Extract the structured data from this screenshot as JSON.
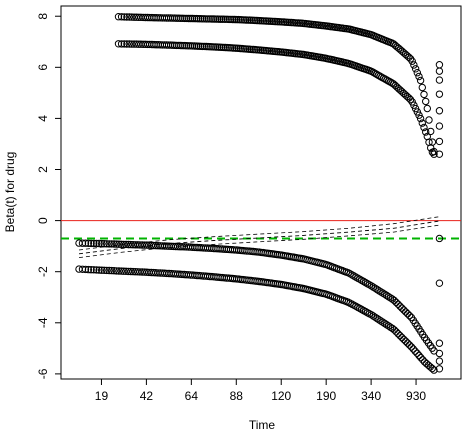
{
  "chart_data": {
    "type": "scatter",
    "title": "",
    "xlabel": "Time",
    "ylabel": "Beta(t) for drug",
    "x_ticks": [
      "19",
      "42",
      "64",
      "88",
      "120",
      "190",
      "340",
      "930"
    ],
    "y_ticks": [
      "-6",
      "-4",
      "-2",
      "0",
      "2",
      "4",
      "6",
      "8"
    ],
    "ylim": [
      -6.2,
      8.4
    ],
    "x_range_rank": [
      -0.4,
      8.5
    ],
    "x_tick_positions": [
      0.5,
      1.5,
      2.5,
      3.5,
      4.5,
      5.5,
      6.5,
      7.5
    ],
    "grid": false,
    "legend": "none",
    "series": [
      {
        "kind": "points",
        "values": [
          7.98,
          7.95,
          7.93,
          7.91,
          7.89,
          7.87,
          7.83,
          7.78,
          7.72,
          7.62,
          7.5,
          7.28,
          6.92,
          6.3,
          5.5,
          4.4,
          3.2,
          2.7
        ],
        "x": [
          0.88,
          1.5,
          2.0,
          2.5,
          3.0,
          3.5,
          4.0,
          4.5,
          5.0,
          5.5,
          6.0,
          6.5,
          7.0,
          7.4,
          7.6,
          7.75,
          7.85,
          7.9
        ]
      },
      {
        "kind": "points",
        "values": [
          6.92,
          6.9,
          6.87,
          6.84,
          6.8,
          6.75,
          6.68,
          6.6,
          6.5,
          6.35,
          6.15,
          5.85,
          5.35,
          4.7,
          4.0,
          3.3,
          2.7,
          2.6
        ],
        "x": [
          0.88,
          1.5,
          2.0,
          2.5,
          3.0,
          3.5,
          4.0,
          4.5,
          5.0,
          5.5,
          6.0,
          6.5,
          7.0,
          7.4,
          7.6,
          7.75,
          7.85,
          7.9
        ]
      },
      {
        "kind": "points",
        "values": [
          -0.88,
          -0.9,
          -0.93,
          -0.96,
          -1.0,
          -1.04,
          -1.09,
          -1.15,
          -1.23,
          -1.35,
          -1.5,
          -1.72,
          -2.05,
          -2.55,
          -3.1,
          -3.8,
          -4.6,
          -5.1
        ],
        "x": [
          0.0,
          0.5,
          1.0,
          1.5,
          2.0,
          2.5,
          3.0,
          3.5,
          4.0,
          4.5,
          5.0,
          5.5,
          6.0,
          6.5,
          7.0,
          7.4,
          7.7,
          7.9
        ]
      },
      {
        "kind": "points",
        "values": [
          -1.9,
          -1.94,
          -1.98,
          -2.02,
          -2.07,
          -2.13,
          -2.2,
          -2.28,
          -2.38,
          -2.5,
          -2.66,
          -2.88,
          -3.2,
          -3.68,
          -4.25,
          -4.95,
          -5.55,
          -5.85
        ],
        "x": [
          0.0,
          0.5,
          1.0,
          1.5,
          2.0,
          2.5,
          3.0,
          3.5,
          4.0,
          4.5,
          5.0,
          5.5,
          6.0,
          6.5,
          7.0,
          7.4,
          7.7,
          7.9
        ]
      },
      {
        "kind": "points",
        "values": [
          6.1,
          5.85,
          5.5,
          4.95,
          4.3,
          3.7,
          3.1,
          2.6,
          -0.7,
          -2.45,
          -4.8,
          -5.2,
          -5.5,
          -5.8
        ],
        "x": [
          8.02,
          8.02,
          8.02,
          8.02,
          8.02,
          8.02,
          8.02,
          8.02,
          8.02,
          8.02,
          8.02,
          8.02,
          8.02,
          8.02
        ]
      }
    ],
    "fit": {
      "x": [
        0.0,
        1.0,
        2.0,
        3.0,
        4.0,
        5.0,
        6.0,
        7.0,
        8.0
      ],
      "center": [
        -1.3,
        -1.08,
        -0.9,
        -0.78,
        -0.68,
        -0.58,
        -0.45,
        -0.3,
        -0.02
      ],
      "upper": [
        -1.15,
        -0.93,
        -0.75,
        -0.63,
        -0.53,
        -0.43,
        -0.3,
        -0.12,
        0.15
      ],
      "lower": [
        -1.45,
        -1.23,
        -1.05,
        -0.93,
        -0.83,
        -0.73,
        -0.6,
        -0.45,
        -0.18
      ]
    },
    "reference_lines": [
      {
        "y": 0,
        "color": "#e8201a",
        "style": "solid"
      },
      {
        "y": -0.7,
        "color": "#00b300",
        "style": "dashed"
      }
    ]
  }
}
